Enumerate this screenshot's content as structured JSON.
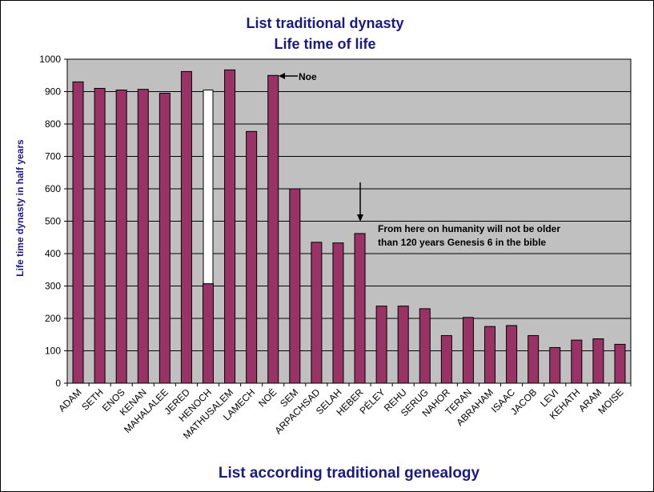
{
  "chart_data": {
    "type": "bar",
    "title_lines": [
      "List traditional dynasty",
      "Life time of life"
    ],
    "xlabel": "List according traditional genealogy",
    "ylabel": "Life time dynasty in half years",
    "ylim": [
      0,
      1000
    ],
    "yticks": [
      0,
      100,
      200,
      300,
      400,
      500,
      600,
      700,
      800,
      900,
      1000
    ],
    "grid": true,
    "categories": [
      "ADAM",
      "SETH",
      "ENOS",
      "KENAN",
      "MAHALALEE",
      "JERED",
      "HENOCH",
      "MATHUSALEM",
      "LAMECH",
      "NOÉ",
      "SEM",
      "ARPACHSAD",
      "SELAH",
      "HEBER",
      "PÉLEY",
      "REHU",
      "SERUG",
      "NAHOR",
      "TERAN",
      "ABRAHAM",
      "ISAAC",
      "JACOB",
      "LEVI",
      "KEHATH",
      "ARAM",
      "MOISE"
    ],
    "values": [
      930,
      910,
      905,
      907,
      895,
      962,
      307,
      967,
      777,
      950,
      600,
      435,
      433,
      462,
      238,
      238,
      230,
      147,
      203,
      175,
      178,
      147,
      110,
      133,
      137,
      120
    ],
    "highlight": {
      "category": "HENOCH",
      "range": [
        307,
        905
      ],
      "color": "#ffffff"
    },
    "colors": {
      "bar": "#993366",
      "plot_bg": "#c0c0c0",
      "title": "#1a1a80"
    },
    "annotations": [
      {
        "text": "Noe",
        "points_to": "NOÉ"
      },
      {
        "text_lines": [
          "From here on humanity will not be older",
          "than 120 years Genesis 6 in the bible"
        ],
        "points_to": "HEBER"
      }
    ]
  }
}
